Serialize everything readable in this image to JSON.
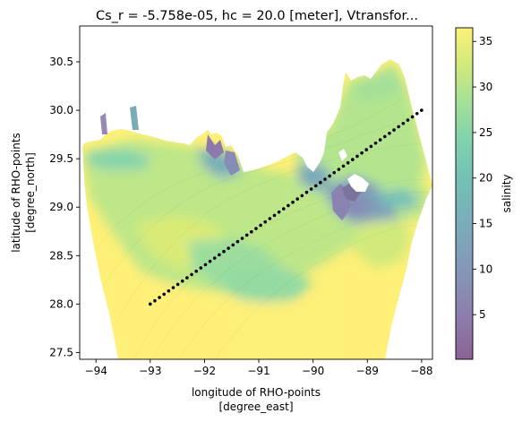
{
  "chart_data": {
    "type": "heatmap",
    "title": "Cs_r = -5.758e-05, hc = 20.0 [meter], Vtransfor...",
    "xlabel_line1": "longitude of RHO-points",
    "xlabel_line2": "[degree_east]",
    "ylabel_line1": "latitude of RHO-points",
    "ylabel_line2": "[degree_north]",
    "xlim": [
      -94.3,
      -87.8
    ],
    "ylim": [
      27.43,
      30.87
    ],
    "x_ticks": [
      -94,
      -93,
      -92,
      -91,
      -90,
      -89,
      -88
    ],
    "x_tick_labels": [
      "−94",
      "−93",
      "−92",
      "−91",
      "−90",
      "−89",
      "−88"
    ],
    "y_ticks": [
      27.5,
      28.0,
      28.5,
      29.0,
      29.5,
      30.0,
      30.5
    ],
    "y_tick_labels": [
      "27.5",
      "28.0",
      "28.5",
      "29.0",
      "29.5",
      "30.0",
      "30.5"
    ],
    "colorbar": {
      "label": "salinity",
      "range": [
        0.1,
        36.5
      ],
      "ticks": [
        5,
        10,
        15,
        20,
        25,
        30,
        35
      ],
      "tick_labels": [
        "5",
        "10",
        "15",
        "20",
        "25",
        "30",
        "35"
      ],
      "colormap": "viridis",
      "alpha": 0.6
    },
    "transect": {
      "start": [
        -93.0,
        28.0
      ],
      "end": [
        -88.0,
        30.0
      ],
      "points": 60,
      "color": "#000000"
    }
  }
}
